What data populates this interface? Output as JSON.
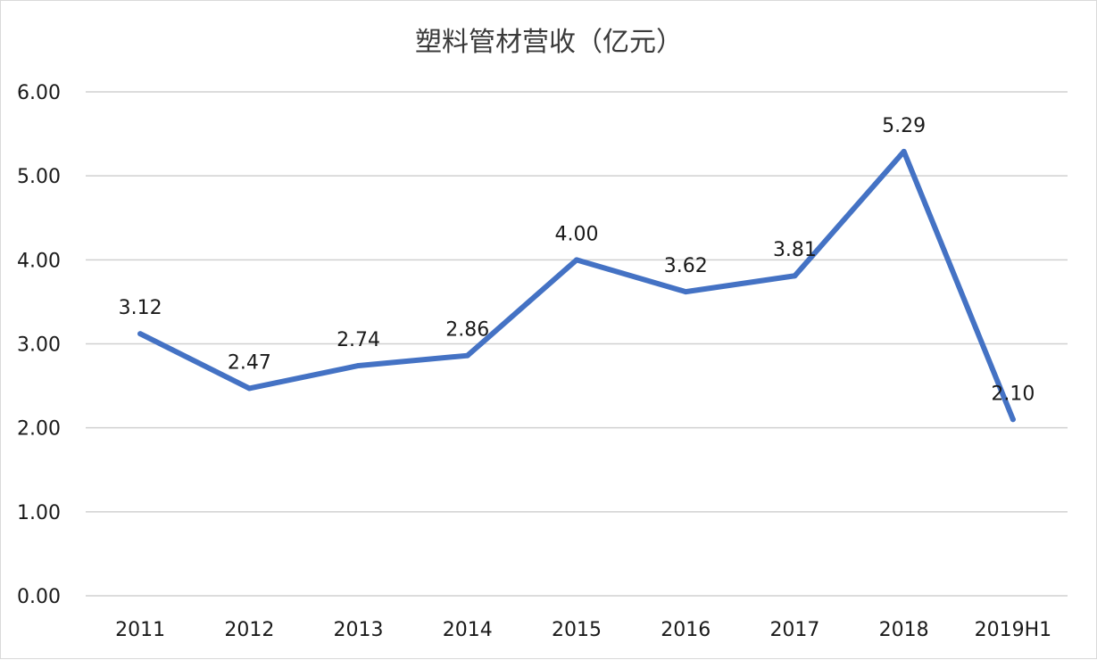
{
  "chart_data": {
    "type": "line",
    "title": "塑料管材营收（亿元）",
    "xlabel": "",
    "ylabel": "",
    "categories": [
      "2011",
      "2012",
      "2013",
      "2014",
      "2015",
      "2016",
      "2017",
      "2018",
      "2019H1"
    ],
    "series": [
      {
        "values": [
          3.12,
          2.47,
          2.74,
          2.86,
          4.0,
          3.62,
          3.81,
          5.29,
          2.1
        ],
        "labels": [
          "3.12",
          "2.47",
          "2.74",
          "2.86",
          "4.00",
          "3.62",
          "3.81",
          "5.29",
          "2.10"
        ],
        "color": "#4472c4"
      }
    ],
    "ylim": [
      0,
      6
    ],
    "yticks": [
      0,
      1,
      2,
      3,
      4,
      5,
      6
    ],
    "ytick_labels": [
      "0.00",
      "1.00",
      "2.00",
      "3.00",
      "4.00",
      "5.00",
      "6.00"
    ],
    "grid": true,
    "legend": "none"
  }
}
